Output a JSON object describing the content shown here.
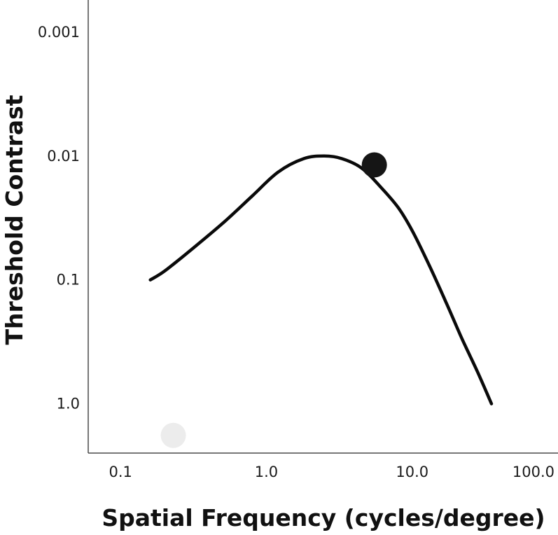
{
  "chart_data": {
    "type": "line",
    "xlabel": "Spatial Frequency (cycles/degree)",
    "ylabel": "Threshold Contrast",
    "x_scale": "log",
    "y_scale": "log",
    "y_inverted": true,
    "xlim": [
      0.06,
      100
    ],
    "ylim": [
      0.00055,
      2.5
    ],
    "x_ticks": [
      0.1,
      1.0,
      10.0,
      100.0
    ],
    "x_tick_labels": [
      "0.1",
      "1.0",
      "10.0",
      "100.0"
    ],
    "y_ticks": [
      0.001,
      0.01,
      0.1,
      1.0
    ],
    "y_tick_labels": [
      "0.001",
      "0.01",
      "0.1",
      "1.0"
    ],
    "grid": false,
    "series": [
      {
        "style": "line",
        "color": "#0a0a0a",
        "x": [
          0.16,
          0.2,
          0.3,
          0.5,
          0.8,
          1.2,
          1.8,
          2.5,
          3.3,
          4.5,
          6.0,
          8.0,
          10.0,
          13.0,
          17.0,
          22.0,
          28.0,
          35.0
        ],
        "y": [
          0.1,
          0.085,
          0.058,
          0.035,
          0.021,
          0.0135,
          0.0105,
          0.01,
          0.0105,
          0.0125,
          0.0175,
          0.026,
          0.04,
          0.075,
          0.15,
          0.3,
          0.55,
          1.0
        ]
      },
      {
        "style": "marker",
        "color": "#151515",
        "x": [
          5.5
        ],
        "y": [
          0.0118
        ]
      },
      {
        "style": "marker",
        "color": "#ececec",
        "x": [
          0.23
        ],
        "y": [
          1.8
        ]
      }
    ]
  }
}
